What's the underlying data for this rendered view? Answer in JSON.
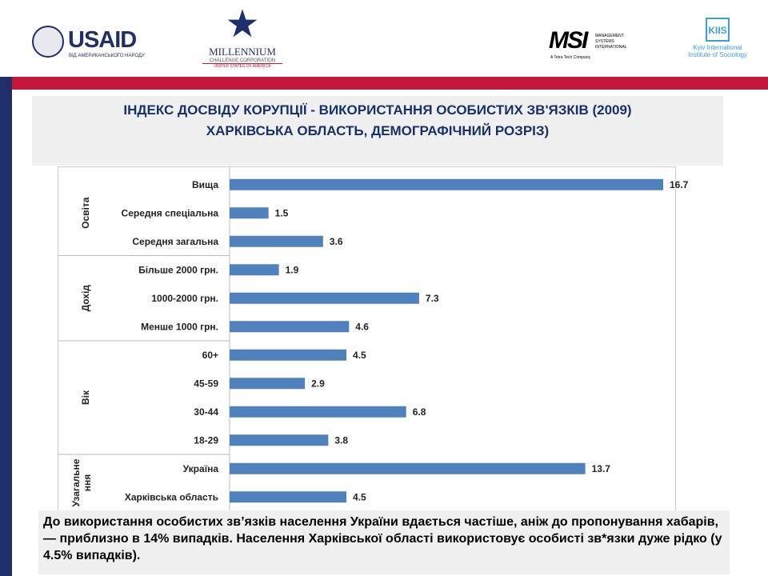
{
  "logos": {
    "usaid": "USAID",
    "usaid_sub": "ВІД АМЕРИКАНСЬКОГО НАРОДУ",
    "mcc": "MILLENNIUM",
    "mcc_sub": "CHALLENGE CORPORATION",
    "mcc_sub2": "UNITED STATES OF AMERICA",
    "msi": "MSI",
    "msi_sub": "MANAGEMENT SYSTEMS INTERNATIONAL",
    "msi_tag": "A Tetra Tech Company",
    "kiis": "KIIS",
    "kiis_sub1": "Kyiv International",
    "kiis_sub2": "Institute of Sociology"
  },
  "title": {
    "line1": "ІНДЕКС ДОСВІДУ КОРУПЦІЇ - ВИКОРИСТАННЯ  ОСОБИСТИХ ЗВ'ЯЗКІВ (2009)",
    "line2": "ХАРКІВСЬКА ОБЛАСТЬ, ДЕМОГРАФІЧНИЙ РОЗРІЗ)"
  },
  "colors": {
    "bar": "#4f81bd",
    "navy": "#1f2f6b",
    "red": "#c4153a"
  },
  "chart_data": {
    "type": "bar",
    "orientation": "horizontal",
    "xlim": [
      0,
      16.7
    ],
    "groups": [
      {
        "name": "Освіта",
        "categories": [
          "Вища",
          "Середня спеціальна",
          "Середня загальна"
        ],
        "values": [
          16.7,
          1.5,
          3.6
        ]
      },
      {
        "name": "Дохід",
        "categories": [
          "Більше 2000 грн.",
          "1000-2000 грн.",
          "Менше 1000 грн."
        ],
        "values": [
          1.9,
          7.3,
          4.6
        ]
      },
      {
        "name": "Вік",
        "categories": [
          "60+",
          "45-59",
          "30-44",
          "18-29"
        ],
        "values": [
          4.5,
          2.9,
          6.8,
          3.8
        ]
      },
      {
        "name": "Узагальне ння",
        "categories": [
          "Україна",
          "Харківська область"
        ],
        "values": [
          13.7,
          4.5
        ]
      }
    ]
  },
  "summary": "До використання особистих зв’язків населення України вдається частіше, аніж до пропонування хабарів, — приблизно в 14% випадків. Населення Харківської області використовує особисті зв*язки дуже рідко (у 4.5% випадків)."
}
